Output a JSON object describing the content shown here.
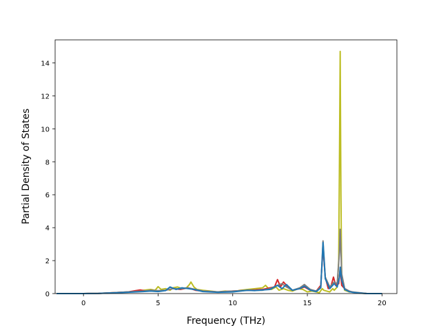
{
  "chart_data": {
    "type": "line",
    "title": "",
    "xlabel": "Frequency (THz)",
    "ylabel": "Partial Density of States",
    "xlim": [
      -1.9,
      21
    ],
    "ylim": [
      0,
      15.4
    ],
    "xticks": [
      0,
      5,
      10,
      15,
      20
    ],
    "yticks": [
      0,
      2,
      4,
      6,
      8,
      10,
      12,
      14
    ],
    "grid": false,
    "legend": "none",
    "series": [
      {
        "color": "#bcbd22",
        "x": [
          -1.8,
          0,
          1,
          2,
          3,
          3.5,
          4,
          4.5,
          4.8,
          5,
          5.2,
          5.5,
          5.8,
          6,
          6.3,
          6.6,
          6.9,
          7.1,
          7.2,
          7.4,
          7.6,
          8,
          8.5,
          9,
          9.5,
          10,
          10.5,
          11,
          11.5,
          12,
          12.2,
          12.4,
          12.6,
          12.9,
          13.1,
          13.4,
          13.7,
          14,
          14.4,
          14.7,
          15,
          15.3,
          15.6,
          15.8,
          16,
          16.1,
          16.3,
          16.5,
          16.7,
          16.8,
          17,
          17.1,
          17.15,
          17.2,
          17.25,
          17.3,
          17.5,
          17.8,
          18,
          18.3,
          18.6,
          19,
          20
        ],
        "y": [
          0,
          0,
          0.01,
          0.05,
          0.1,
          0.15,
          0.2,
          0.25,
          0.2,
          0.42,
          0.25,
          0.3,
          0.2,
          0.35,
          0.4,
          0.3,
          0.35,
          0.55,
          0.7,
          0.4,
          0.25,
          0.2,
          0.15,
          0.1,
          0.15,
          0.1,
          0.2,
          0.25,
          0.3,
          0.35,
          0.5,
          0.3,
          0.25,
          0.4,
          0.2,
          0.3,
          0.2,
          0.15,
          0.3,
          0.25,
          0.1,
          0.15,
          0.1,
          0.05,
          0.3,
          0.2,
          0.15,
          0.1,
          0.3,
          0.2,
          0.4,
          2,
          8,
          14.7,
          6,
          1,
          0.2,
          0.1,
          0.1,
          0.05,
          0.02,
          0,
          0
        ]
      },
      {
        "color": "#d62728",
        "x": [
          -1.8,
          0,
          1,
          2,
          3,
          3.5,
          3.8,
          4.2,
          4.6,
          5,
          5.5,
          6,
          6.5,
          7,
          7.5,
          8,
          9,
          10,
          11,
          12,
          12.5,
          12.8,
          13,
          13.2,
          13.4,
          13.6,
          14,
          14.5,
          14.8,
          15.2,
          15.6,
          15.9,
          16.05,
          16.2,
          16.4,
          16.6,
          16.75,
          16.9,
          17.1,
          17.2,
          17.3,
          17.5,
          17.8,
          18,
          18.3,
          19,
          20
        ],
        "y": [
          0,
          0,
          0.01,
          0.05,
          0.1,
          0.18,
          0.22,
          0.15,
          0.2,
          0.15,
          0.2,
          0.3,
          0.25,
          0.35,
          0.2,
          0.15,
          0.1,
          0.15,
          0.2,
          0.25,
          0.35,
          0.4,
          0.85,
          0.4,
          0.7,
          0.5,
          0.2,
          0.3,
          0.4,
          0.2,
          0.15,
          0.5,
          2.8,
          1,
          0.3,
          0.5,
          1,
          0.5,
          0.6,
          1.5,
          0.5,
          0.3,
          0.15,
          0.1,
          0.05,
          0,
          0
        ]
      },
      {
        "color": "#7f7f7f",
        "x": [
          -1.8,
          0,
          1,
          2,
          3,
          4,
          4.5,
          5,
          5.5,
          6,
          6.5,
          7,
          7.5,
          8,
          9,
          10,
          11,
          12,
          12.5,
          13,
          13.3,
          13.6,
          14,
          14.5,
          14.8,
          15.2,
          15.6,
          15.9,
          16.05,
          16.2,
          16.5,
          16.8,
          17,
          17.15,
          17.2,
          17.3,
          17.5,
          17.8,
          18,
          18.5,
          19,
          20
        ],
        "y": [
          0,
          0,
          0.01,
          0.05,
          0.1,
          0.15,
          0.2,
          0.18,
          0.2,
          0.3,
          0.28,
          0.35,
          0.25,
          0.15,
          0.1,
          0.15,
          0.2,
          0.2,
          0.3,
          0.5,
          0.6,
          0.4,
          0.2,
          0.35,
          0.55,
          0.25,
          0.15,
          0.4,
          3.2,
          1,
          0.4,
          0.7,
          0.6,
          2.5,
          3.9,
          1.2,
          0.3,
          0.15,
          0.1,
          0.05,
          0,
          0
        ]
      },
      {
        "color": "#1f77b4",
        "x": [
          -1.8,
          0,
          1,
          2,
          3,
          4,
          4.5,
          5,
          5.5,
          5.8,
          6.2,
          6.6,
          7,
          7.4,
          8,
          9,
          10,
          10.5,
          11,
          11.5,
          12,
          12.5,
          13,
          13.3,
          13.6,
          14,
          14.5,
          14.8,
          15.2,
          15.6,
          15.9,
          16.05,
          16.2,
          16.5,
          16.8,
          17,
          17.15,
          17.2,
          17.3,
          17.5,
          17.8,
          18,
          18.5,
          19,
          20
        ],
        "y": [
          0,
          0,
          0.01,
          0.04,
          0.08,
          0.12,
          0.15,
          0.12,
          0.18,
          0.4,
          0.25,
          0.35,
          0.3,
          0.25,
          0.12,
          0.08,
          0.1,
          0.15,
          0.2,
          0.18,
          0.22,
          0.25,
          0.5,
          0.3,
          0.55,
          0.2,
          0.3,
          0.45,
          0.2,
          0.12,
          0.35,
          3.1,
          0.9,
          0.3,
          0.6,
          0.4,
          1,
          1.6,
          0.8,
          0.25,
          0.12,
          0.08,
          0.03,
          0,
          0
        ]
      }
    ]
  }
}
